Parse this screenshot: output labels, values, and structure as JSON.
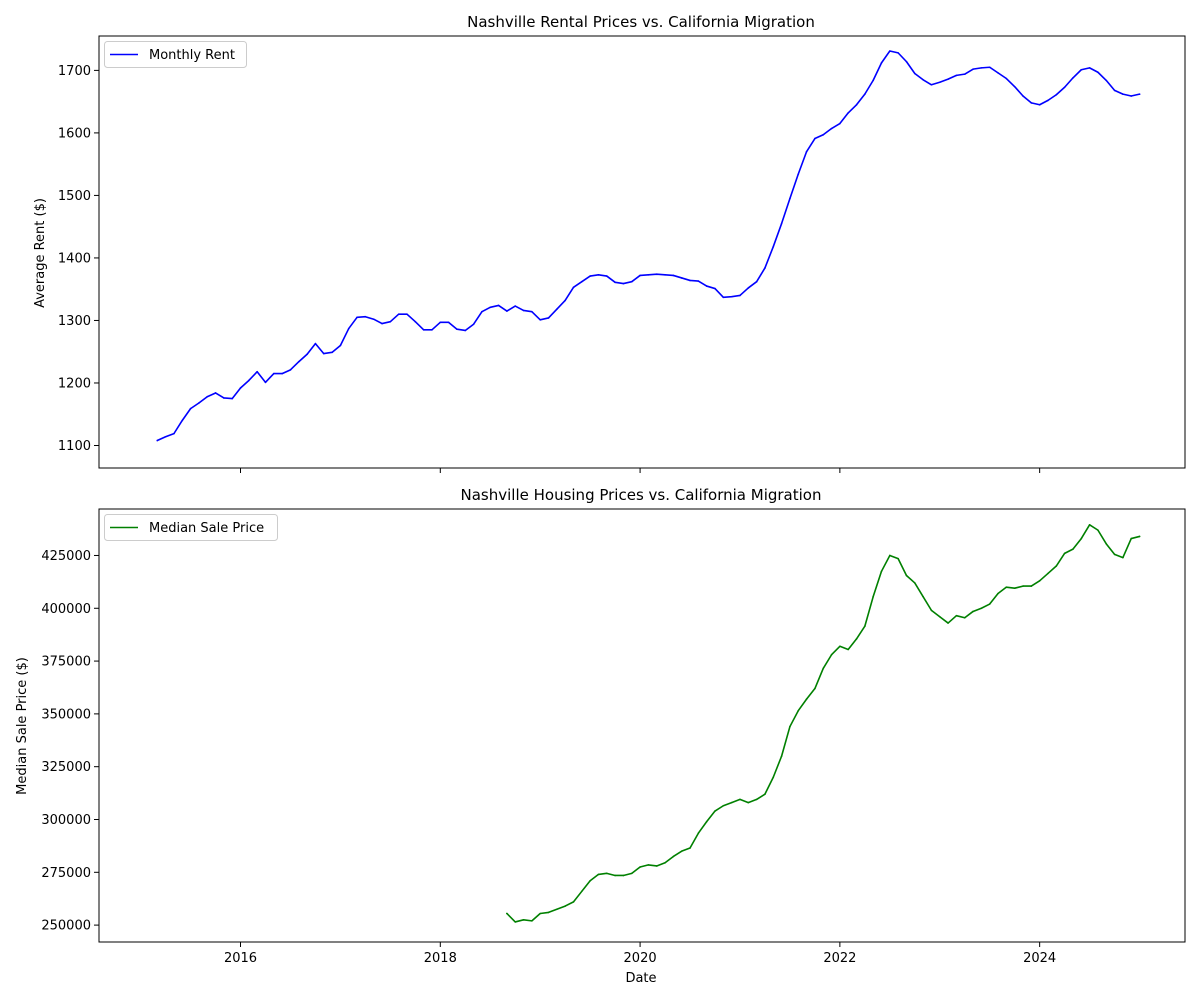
{
  "chart_data": [
    {
      "type": "line",
      "title": "Nashville Rental Prices vs. California Migration",
      "xlabel": "",
      "ylabel": "Average Rent ($)",
      "xlim": [
        "2014-08-01",
        "2025-06-15"
      ],
      "ylim": [
        1064,
        1755
      ],
      "yticks": [
        1100,
        1200,
        1300,
        1400,
        1500,
        1600,
        1700
      ],
      "xticks": [
        "2016",
        "2018",
        "2020",
        "2022",
        "2024"
      ],
      "show_xtick_labels": false,
      "grid": false,
      "legend": "top-left",
      "series": [
        {
          "name": "Monthly Rent",
          "color": "#0000ff",
          "x": [
            "2015-03",
            "2015-04",
            "2015-05",
            "2015-06",
            "2015-07",
            "2015-08",
            "2015-09",
            "2015-10",
            "2015-11",
            "2015-12",
            "2016-01",
            "2016-02",
            "2016-03",
            "2016-04",
            "2016-05",
            "2016-06",
            "2016-07",
            "2016-08",
            "2016-09",
            "2016-10",
            "2016-11",
            "2016-12",
            "2017-01",
            "2017-02",
            "2017-03",
            "2017-04",
            "2017-05",
            "2017-06",
            "2017-07",
            "2017-08",
            "2017-09",
            "2017-10",
            "2017-11",
            "2017-12",
            "2018-01",
            "2018-02",
            "2018-03",
            "2018-04",
            "2018-05",
            "2018-06",
            "2018-07",
            "2018-08",
            "2018-09",
            "2018-10",
            "2018-11",
            "2018-12",
            "2019-01",
            "2019-02",
            "2019-03",
            "2019-04",
            "2019-05",
            "2019-06",
            "2019-07",
            "2019-08",
            "2019-09",
            "2019-10",
            "2019-11",
            "2019-12",
            "2020-01",
            "2020-02",
            "2020-03",
            "2020-04",
            "2020-05",
            "2020-06",
            "2020-07",
            "2020-08",
            "2020-09",
            "2020-10",
            "2020-11",
            "2020-12",
            "2021-01",
            "2021-02",
            "2021-03",
            "2021-04",
            "2021-05",
            "2021-06",
            "2021-07",
            "2021-08",
            "2021-09",
            "2021-10",
            "2021-11",
            "2021-12",
            "2022-01",
            "2022-02",
            "2022-03",
            "2022-04",
            "2022-05",
            "2022-06",
            "2022-07",
            "2022-08",
            "2022-09",
            "2022-10",
            "2022-11",
            "2022-12",
            "2023-01",
            "2023-02",
            "2023-03",
            "2023-04",
            "2023-05",
            "2023-06",
            "2023-07",
            "2023-08",
            "2023-09",
            "2023-10",
            "2023-11",
            "2023-12",
            "2024-01",
            "2024-02",
            "2024-03",
            "2024-04",
            "2024-05",
            "2024-06",
            "2024-07",
            "2024-08",
            "2024-09",
            "2024-10",
            "2024-11",
            "2024-12",
            "2025-01"
          ],
          "values": [
            1108,
            1114,
            1119,
            1140,
            1159,
            1168,
            1178,
            1184,
            1176,
            1175,
            1192,
            1204,
            1218,
            1201,
            1215,
            1215,
            1221,
            1234,
            1246,
            1263,
            1247,
            1249,
            1260,
            1287,
            1305,
            1306,
            1302,
            1295,
            1298,
            1310,
            1310,
            1298,
            1285,
            1285,
            1297,
            1297,
            1286,
            1284,
            1294,
            1314,
            1321,
            1324,
            1315,
            1323,
            1316,
            1314,
            1301,
            1304,
            1318,
            1332,
            1353,
            1362,
            1371,
            1373,
            1371,
            1361,
            1359,
            1362,
            1372,
            1373,
            1374,
            1373,
            1372,
            1368,
            1364,
            1363,
            1355,
            1351,
            1337,
            1338,
            1340,
            1352,
            1362,
            1384,
            1418,
            1455,
            1495,
            1534,
            1570,
            1591,
            1597,
            1607,
            1615,
            1632,
            1645,
            1662,
            1684,
            1712,
            1731,
            1728,
            1714,
            1695,
            1685,
            1677,
            1681,
            1686,
            1692,
            1694,
            1702,
            1704,
            1705,
            1696,
            1687,
            1674,
            1659,
            1648,
            1645,
            1652,
            1661,
            1673,
            1688,
            1701,
            1704,
            1697,
            1684,
            1668,
            1662,
            1659,
            1662
          ]
        }
      ]
    },
    {
      "type": "line",
      "title": "Nashville Housing Prices vs. California Migration",
      "xlabel": "Date",
      "ylabel": "Median Sale Price ($)",
      "xlim": [
        "2014-08-01",
        "2025-06-15"
      ],
      "ylim": [
        242000,
        447000
      ],
      "yticks": [
        250000,
        275000,
        300000,
        325000,
        350000,
        375000,
        400000,
        425000
      ],
      "xticks": [
        "2016",
        "2018",
        "2020",
        "2022",
        "2024"
      ],
      "show_xtick_labels": true,
      "grid": false,
      "legend": "top-left",
      "series": [
        {
          "name": "Median Sale Price",
          "color": "#008000",
          "x": [
            "2018-09",
            "2018-10",
            "2018-11",
            "2018-12",
            "2019-01",
            "2019-02",
            "2019-03",
            "2019-04",
            "2019-05",
            "2019-06",
            "2019-07",
            "2019-08",
            "2019-09",
            "2019-10",
            "2019-11",
            "2019-12",
            "2020-01",
            "2020-02",
            "2020-03",
            "2020-04",
            "2020-05",
            "2020-06",
            "2020-07",
            "2020-08",
            "2020-09",
            "2020-10",
            "2020-11",
            "2020-12",
            "2021-01",
            "2021-02",
            "2021-03",
            "2021-04",
            "2021-05",
            "2021-06",
            "2021-07",
            "2021-08",
            "2021-09",
            "2021-10",
            "2021-11",
            "2021-12",
            "2022-01",
            "2022-02",
            "2022-03",
            "2022-04",
            "2022-05",
            "2022-06",
            "2022-07",
            "2022-08",
            "2022-09",
            "2022-10",
            "2022-11",
            "2022-12",
            "2023-01",
            "2023-02",
            "2023-03",
            "2023-04",
            "2023-05",
            "2023-06",
            "2023-07",
            "2023-08",
            "2023-09",
            "2023-10",
            "2023-11",
            "2023-12",
            "2024-01",
            "2024-02",
            "2024-03",
            "2024-04",
            "2024-05",
            "2024-06",
            "2024-07",
            "2024-08",
            "2024-09",
            "2024-10",
            "2024-11",
            "2024-12",
            "2025-01"
          ],
          "values": [
            255500,
            251500,
            252500,
            252000,
            255500,
            256000,
            257500,
            259000,
            261000,
            266000,
            271000,
            274000,
            274500,
            273500,
            273500,
            274500,
            277500,
            278500,
            278000,
            279500,
            282500,
            285000,
            286500,
            293500,
            299000,
            304000,
            306500,
            308000,
            309500,
            308000,
            309500,
            312000,
            320000,
            330000,
            344000,
            351500,
            357000,
            362000,
            371500,
            378000,
            382000,
            380500,
            385500,
            391500,
            405500,
            417500,
            425000,
            423500,
            415500,
            412000,
            405500,
            399000,
            396000,
            393000,
            396500,
            395500,
            398500,
            400000,
            402000,
            407000,
            410000,
            409500,
            410500,
            410500,
            413000,
            416500,
            420000,
            426000,
            428000,
            433000,
            439500,
            437000,
            430500,
            425500,
            424000,
            433000,
            434000
          ]
        }
      ]
    }
  ]
}
